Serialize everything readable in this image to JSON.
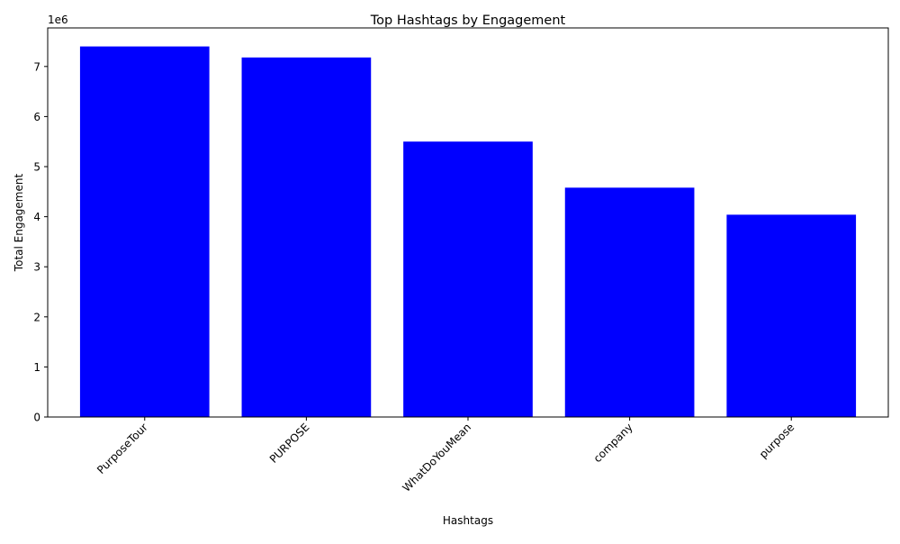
{
  "chart_data": {
    "type": "bar",
    "title": "Top Hashtags by Engagement",
    "xlabel": "Hashtags",
    "ylabel": "Total Engagement",
    "y_offset_label": "1e6",
    "categories": [
      "PurposeTour",
      "PURPOSE",
      "WhatDoYouMean",
      "company",
      "purpose"
    ],
    "values": [
      7400000,
      7180000,
      5500000,
      4580000,
      4040000
    ],
    "ylim": [
      0,
      7770000
    ],
    "yticks": [
      0,
      1000000,
      2000000,
      3000000,
      4000000,
      5000000,
      6000000,
      7000000
    ],
    "ytick_labels": [
      "0",
      "1",
      "2",
      "3",
      "4",
      "5",
      "6",
      "7"
    ],
    "xtick_rotation_deg": 45,
    "bar_color": "#0000ff",
    "grid": false,
    "legend": "none"
  }
}
